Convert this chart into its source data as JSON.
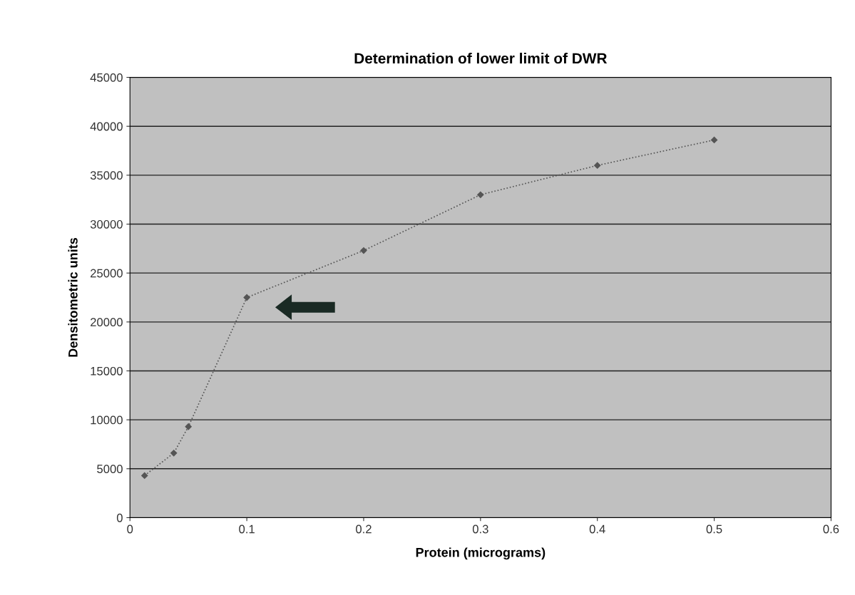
{
  "chart_data": {
    "type": "line",
    "title": "Determination of lower limit of DWR",
    "xlabel": "Protein (micrograms)",
    "ylabel": "Densitometric units",
    "x": [
      0.0125,
      0.0375,
      0.05,
      0.1,
      0.2,
      0.3,
      0.4,
      0.5
    ],
    "series": [
      {
        "color": "#555555",
        "values": [
          4300,
          6600,
          9300,
          22500,
          27300,
          33000,
          36000,
          38600
        ]
      }
    ],
    "xlim": [
      0,
      0.6
    ],
    "xticks": [
      0,
      0.1,
      0.2,
      0.3,
      0.4,
      0.5,
      0.6
    ],
    "ylim": [
      0,
      45000
    ],
    "yticks": [
      0,
      5000,
      10000,
      15000,
      20000,
      25000,
      30000,
      35000,
      40000,
      45000
    ],
    "grid": "y",
    "marker": "diamond",
    "line_style": "dotted"
  }
}
